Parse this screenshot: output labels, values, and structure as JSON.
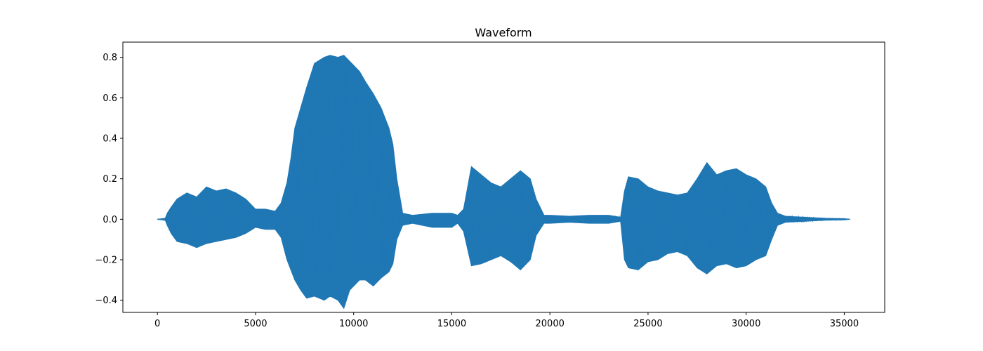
{
  "chart_data": {
    "type": "line",
    "title": "Waveform",
    "xlabel": "",
    "ylabel": "",
    "xlim": [
      -1760,
      37060
    ],
    "ylim": [
      -0.46,
      0.875
    ],
    "xticks": [
      0,
      5000,
      10000,
      15000,
      20000,
      25000,
      30000,
      35000
    ],
    "xtick_labels": [
      "0",
      "5000",
      "10000",
      "15000",
      "20000",
      "25000",
      "30000",
      "35000"
    ],
    "yticks": [
      -0.4,
      -0.2,
      0.0,
      0.2,
      0.4,
      0.6,
      0.8
    ],
    "ytick_labels": [
      "−0.4",
      "−0.2",
      "0.0",
      "0.2",
      "0.4",
      "0.6",
      "0.8"
    ],
    "grid": false,
    "line_color": "#1f77b4",
    "series": [
      {
        "x": [
          0,
          400,
          500,
          700,
          1000,
          1500,
          2000,
          2500,
          3000,
          3500,
          4000,
          4500,
          5000,
          5500,
          6000,
          6300,
          6600,
          6800,
          7000,
          7300,
          7600,
          8000,
          8500,
          8800,
          9200,
          9500,
          9800,
          10000,
          10300,
          10600,
          11000,
          11400,
          11800,
          12000,
          12200,
          12500,
          13000,
          14000,
          15000,
          15300,
          15600,
          16000,
          16500,
          17000,
          17500,
          18000,
          18500,
          19000,
          19300,
          19700,
          20000,
          21000,
          22000,
          23000,
          23600,
          23800,
          24000,
          24500,
          25000,
          25500,
          26000,
          26500,
          27000,
          27500,
          28000,
          28500,
          29000,
          29500,
          30000,
          30500,
          31000,
          31300,
          31600,
          32000,
          33000,
          34000,
          35000,
          35300
        ],
        "upper": [
          0.0,
          0.005,
          0.03,
          0.06,
          0.1,
          0.13,
          0.11,
          0.16,
          0.14,
          0.15,
          0.13,
          0.1,
          0.05,
          0.05,
          0.04,
          0.08,
          0.18,
          0.3,
          0.45,
          0.55,
          0.65,
          0.77,
          0.8,
          0.81,
          0.8,
          0.81,
          0.78,
          0.76,
          0.73,
          0.68,
          0.62,
          0.55,
          0.45,
          0.37,
          0.2,
          0.03,
          0.02,
          0.03,
          0.03,
          0.02,
          0.05,
          0.26,
          0.22,
          0.18,
          0.16,
          0.2,
          0.24,
          0.2,
          0.1,
          0.02,
          0.02,
          0.015,
          0.02,
          0.02,
          0.01,
          0.14,
          0.21,
          0.2,
          0.16,
          0.14,
          0.13,
          0.12,
          0.13,
          0.2,
          0.28,
          0.22,
          0.24,
          0.25,
          0.22,
          0.2,
          0.16,
          0.08,
          0.03,
          0.015,
          0.01,
          0.005,
          0.003,
          0.0
        ],
        "lower": [
          0.0,
          -0.005,
          -0.03,
          -0.07,
          -0.11,
          -0.12,
          -0.14,
          -0.12,
          -0.11,
          -0.1,
          -0.09,
          -0.07,
          -0.04,
          -0.05,
          -0.05,
          -0.09,
          -0.2,
          -0.25,
          -0.3,
          -0.35,
          -0.39,
          -0.38,
          -0.4,
          -0.38,
          -0.4,
          -0.44,
          -0.35,
          -0.33,
          -0.3,
          -0.3,
          -0.33,
          -0.29,
          -0.26,
          -0.22,
          -0.1,
          -0.03,
          -0.02,
          -0.04,
          -0.04,
          -0.02,
          -0.06,
          -0.23,
          -0.22,
          -0.2,
          -0.18,
          -0.21,
          -0.25,
          -0.2,
          -0.08,
          -0.02,
          -0.02,
          -0.015,
          -0.02,
          -0.02,
          -0.01,
          -0.2,
          -0.24,
          -0.25,
          -0.21,
          -0.2,
          -0.17,
          -0.16,
          -0.18,
          -0.24,
          -0.27,
          -0.23,
          -0.22,
          -0.24,
          -0.23,
          -0.2,
          -0.18,
          -0.1,
          -0.03,
          -0.015,
          -0.01,
          -0.005,
          -0.003,
          0.0
        ]
      }
    ]
  }
}
